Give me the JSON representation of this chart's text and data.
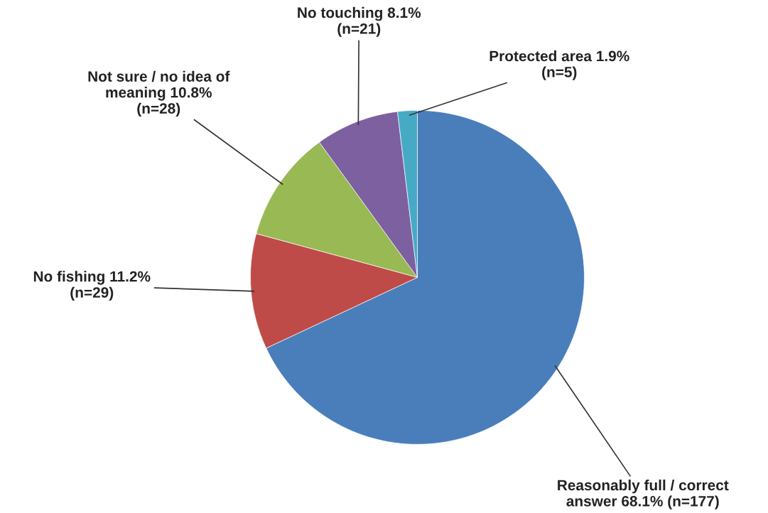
{
  "chart_data": {
    "type": "pie",
    "categories": [
      "Reasonably full / correct\nanswer",
      "No fishing",
      "Not sure / no idea of\nmeaning",
      "No touching",
      "Protected area"
    ],
    "values": [
      68.1,
      11.2,
      10.8,
      8.1,
      1.9
    ],
    "value_labels": [
      "68.1% (n=177)",
      "11.2%\n(n=29)",
      "10.8%\n(n=28)",
      "8.1%\n(n=21)",
      "1.9%\n(n=5)"
    ],
    "colors": [
      "#4a7ebb",
      "#be4b48",
      "#98b954",
      "#7d60a0",
      "#46aac5"
    ],
    "legend": false
  }
}
